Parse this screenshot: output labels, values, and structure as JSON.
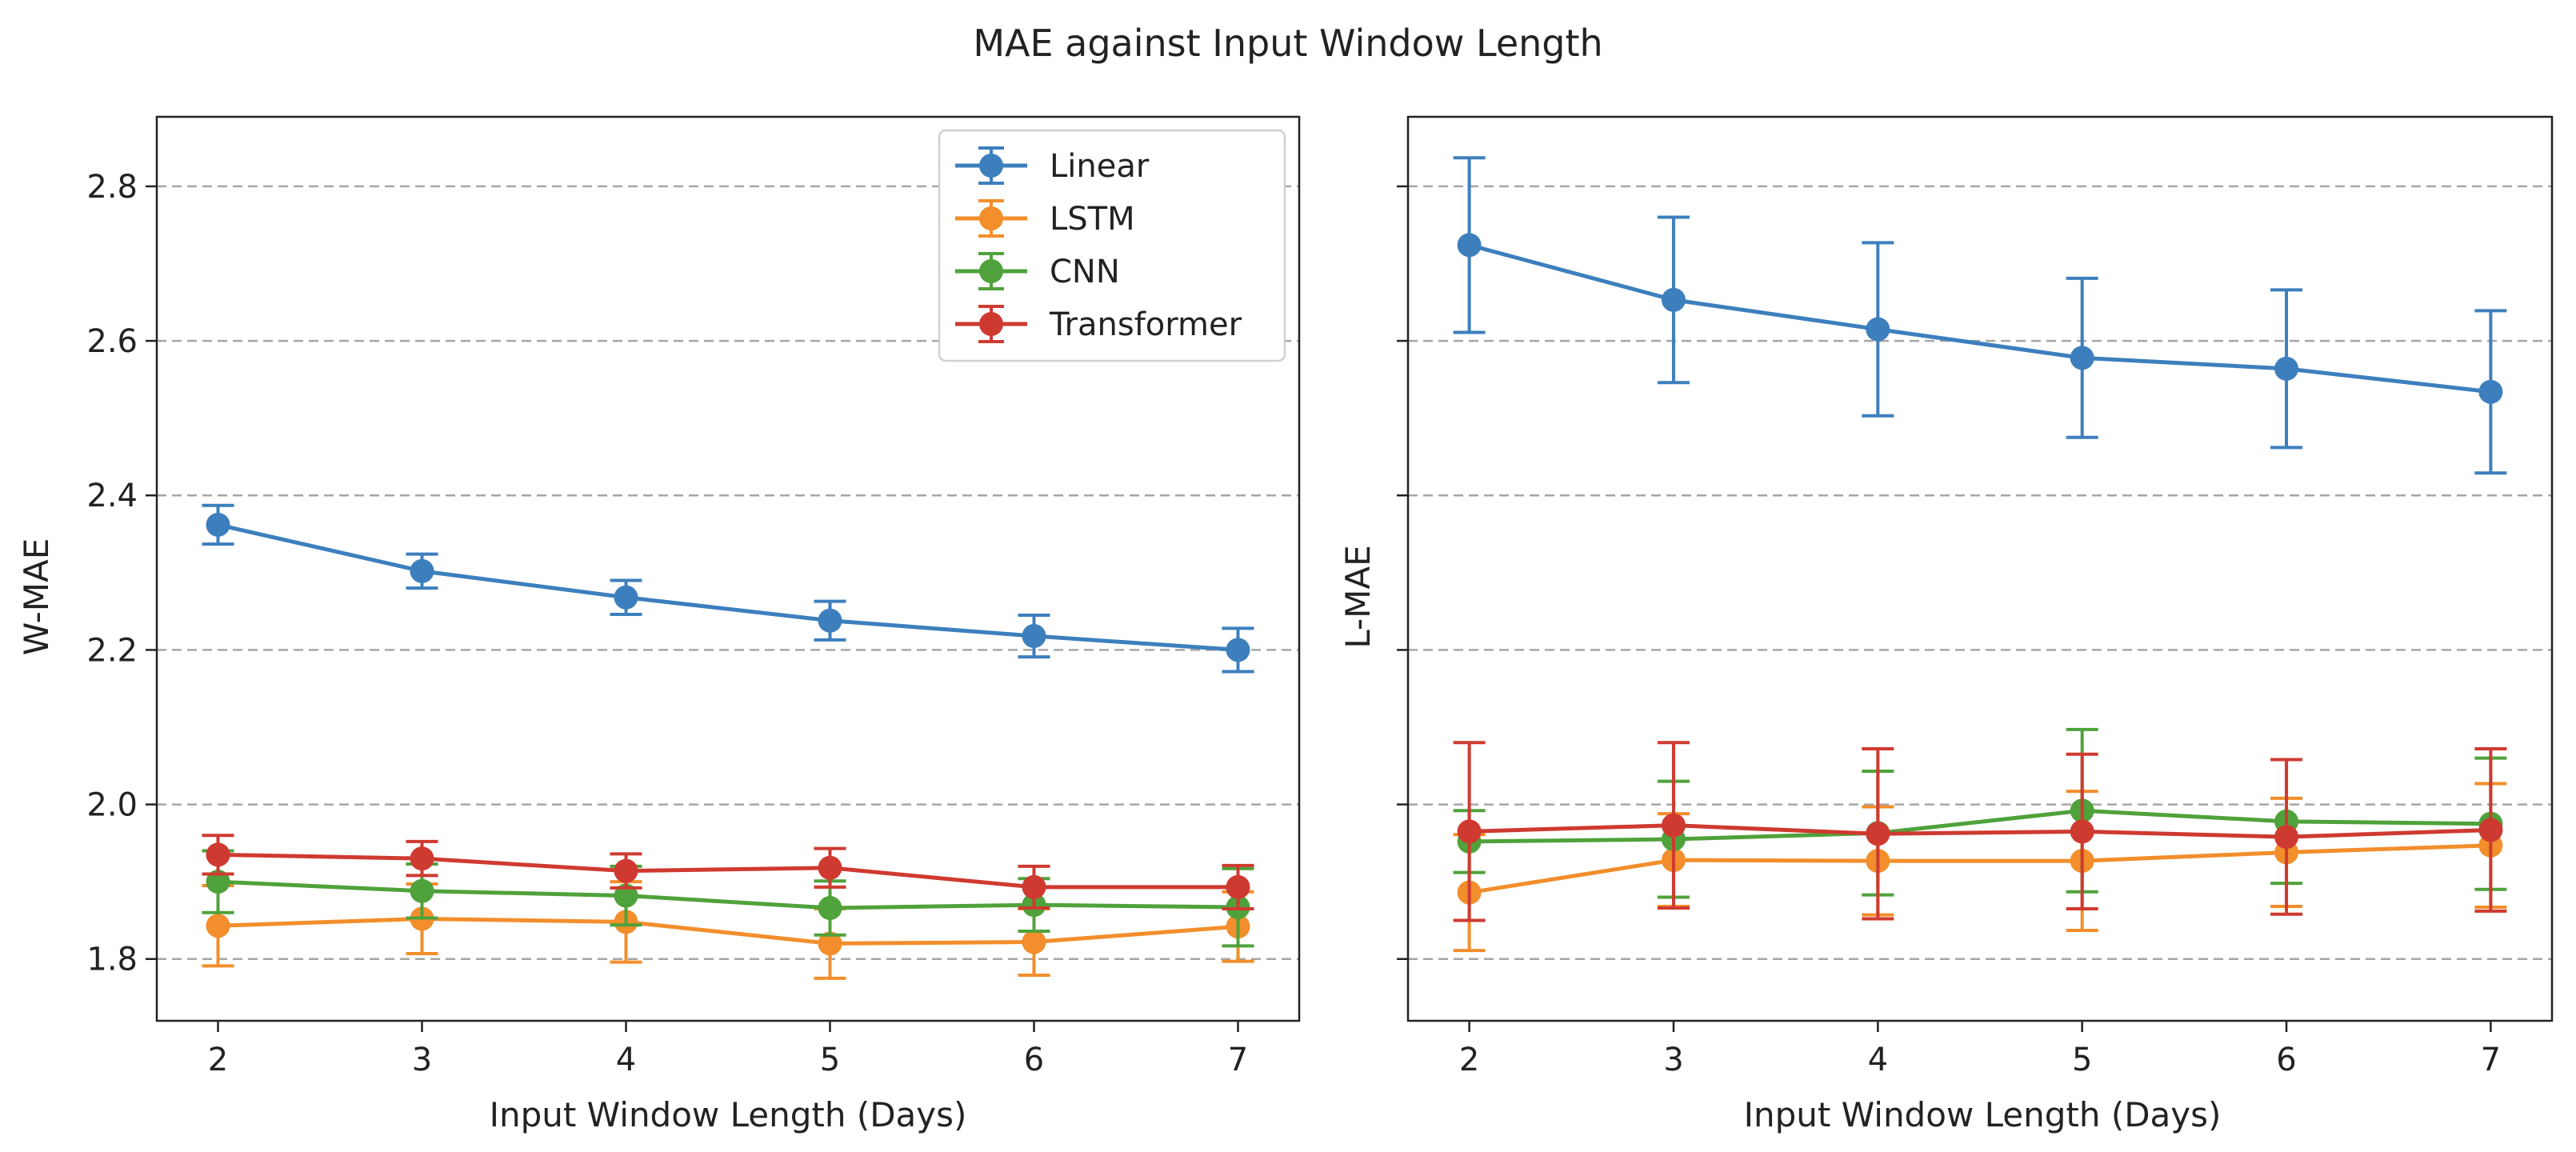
{
  "figure": {
    "title": "MAE against Input Window Length"
  },
  "colors": {
    "Linear": "#3d7fbd",
    "LSTM": "#f28e2b",
    "CNN": "#4fa23b",
    "Transformer": "#cf3a30",
    "grid": "#a6a6a6",
    "axis": "#222222"
  },
  "chart_data": [
    {
      "type": "line",
      "with_error_bars": true,
      "title": "",
      "xlabel": "Input Window Length (Days)",
      "ylabel": "W-MAE",
      "x": [
        2,
        3,
        4,
        5,
        6,
        7
      ],
      "xticks": [
        "2",
        "3",
        "4",
        "5",
        "6",
        "7"
      ],
      "xlim": [
        1.7,
        7.3
      ],
      "yticks": [
        "1.8",
        "2.0",
        "2.2",
        "2.4",
        "2.6",
        "2.8"
      ],
      "ytick_values": [
        1.8,
        2.0,
        2.2,
        2.4,
        2.6,
        2.8
      ],
      "ylim": [
        1.72,
        2.89
      ],
      "grid": "horizontal dashed",
      "legend": "upper right",
      "series": [
        {
          "name": "Linear",
          "values": [
            2.362,
            2.302,
            2.268,
            2.238,
            2.218,
            2.2
          ],
          "errors": [
            0.025,
            0.022,
            0.022,
            0.025,
            0.027,
            0.028
          ]
        },
        {
          "name": "LSTM",
          "values": [
            1.843,
            1.852,
            1.848,
            1.82,
            1.822,
            1.842
          ],
          "errors": [
            0.052,
            0.045,
            0.052,
            0.045,
            0.043,
            0.045
          ]
        },
        {
          "name": "CNN",
          "values": [
            1.9,
            1.888,
            1.882,
            1.866,
            1.87,
            1.867
          ],
          "errors": [
            0.04,
            0.035,
            0.038,
            0.035,
            0.034,
            0.05
          ]
        },
        {
          "name": "Transformer",
          "values": [
            1.935,
            1.93,
            1.914,
            1.918,
            1.893,
            1.893
          ],
          "errors": [
            0.025,
            0.022,
            0.022,
            0.025,
            0.027,
            0.028
          ]
        }
      ]
    },
    {
      "type": "line",
      "with_error_bars": true,
      "title": "",
      "xlabel": "Input Window Length (Days)",
      "ylabel": "L-MAE",
      "x": [
        2,
        3,
        4,
        5,
        6,
        7
      ],
      "xticks": [
        "2",
        "3",
        "4",
        "5",
        "6",
        "7"
      ],
      "xlim": [
        1.7,
        7.3
      ],
      "ytick_values": [
        1.8,
        2.0,
        2.2,
        2.4,
        2.6,
        2.8
      ],
      "ylim": [
        1.72,
        2.89
      ],
      "grid": "horizontal dashed",
      "shared_y": true,
      "series": [
        {
          "name": "Linear",
          "values": [
            2.724,
            2.653,
            2.615,
            2.578,
            2.564,
            2.534
          ],
          "errors": [
            0.113,
            0.107,
            0.112,
            0.103,
            0.102,
            0.105
          ]
        },
        {
          "name": "LSTM",
          "values": [
            1.886,
            1.928,
            1.927,
            1.927,
            1.938,
            1.947
          ],
          "errors": [
            0.075,
            0.06,
            0.07,
            0.09,
            0.07,
            0.08
          ]
        },
        {
          "name": "CNN",
          "values": [
            1.952,
            1.955,
            1.963,
            1.992,
            1.978,
            1.975
          ],
          "errors": [
            0.04,
            0.075,
            0.08,
            0.105,
            0.08,
            0.085
          ]
        },
        {
          "name": "Transformer",
          "values": [
            1.965,
            1.973,
            1.962,
            1.965,
            1.958,
            1.967
          ],
          "errors": [
            0.115,
            0.107,
            0.11,
            0.1,
            0.1,
            0.105
          ]
        }
      ]
    }
  ]
}
